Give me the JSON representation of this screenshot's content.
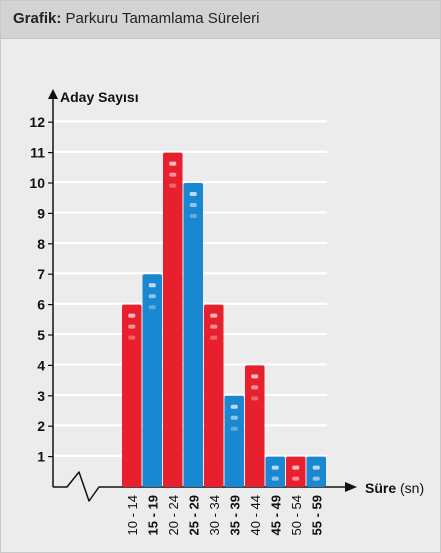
{
  "header": {
    "label": "Grafik:",
    "title": "Parkuru Tamamlama Süreleri"
  },
  "chart_data": {
    "type": "bar",
    "ylabel": "Aday Sayısı",
    "xlabel": "Süre",
    "xlabel_unit": "(sn)",
    "ylim": [
      0,
      12
    ],
    "yticks": [
      "1",
      "2",
      "3",
      "4",
      "5",
      "6",
      "7",
      "8",
      "9",
      "10",
      "11",
      "12"
    ],
    "categories": [
      "10 - 14",
      "15 - 19",
      "20 - 24",
      "25 - 29",
      "30 - 34",
      "35 - 39",
      "40 - 44",
      "45 - 49",
      "50 - 54",
      "55 - 59"
    ],
    "category_bold": [
      false,
      true,
      false,
      true,
      false,
      true,
      false,
      true,
      false,
      true
    ],
    "values": [
      6,
      7,
      11,
      10,
      6,
      3,
      4,
      1,
      1,
      1
    ],
    "colors": [
      "#e8202d",
      "#1a88d0",
      "#e8202d",
      "#1a88d0",
      "#e8202d",
      "#1a88d0",
      "#e8202d",
      "#1a88d0",
      "#e8202d",
      "#1a88d0"
    ],
    "grid": true
  }
}
